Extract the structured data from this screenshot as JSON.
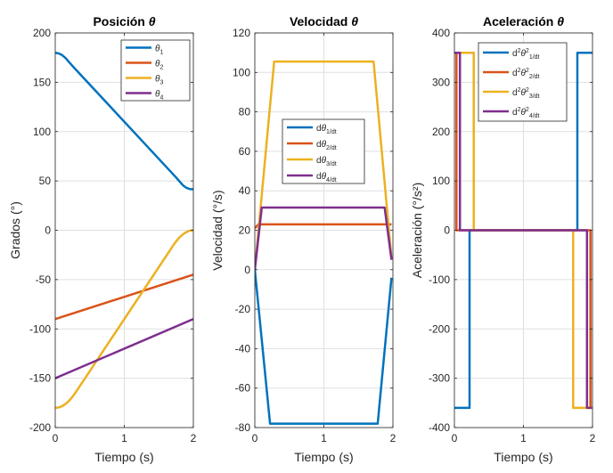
{
  "chart_data": [
    {
      "type": "line",
      "title": "Posición  θ",
      "xlabel": "Tiempo (s)",
      "ylabel": "Grados (°)",
      "xlim": [
        0,
        2
      ],
      "ylim": [
        -200,
        200
      ],
      "xticks": [
        0,
        1,
        2
      ],
      "yticks": [
        -200,
        -150,
        -100,
        -50,
        0,
        50,
        100,
        150,
        200
      ],
      "grid": true,
      "legend_position": "top-right",
      "series": [
        {
          "name": "θ1",
          "color": "#0072BD",
          "x": [
            0,
            0.05,
            0.1,
            0.15,
            0.2,
            0.25,
            1.75,
            1.8,
            1.85,
            1.9,
            1.95,
            2.0
          ],
          "y": [
            180,
            179.2,
            177.5,
            174.5,
            170.5,
            166.5,
            53.5,
            49.5,
            45.5,
            43,
            41.8,
            41.5
          ]
        },
        {
          "name": "θ2",
          "color": "#D95319",
          "x": [
            0,
            2
          ],
          "y": [
            -90,
            -45
          ]
        },
        {
          "name": "θ3",
          "color": "#EDB120",
          "x": [
            0,
            0.05,
            0.1,
            0.15,
            0.2,
            0.25,
            0.3,
            1.7,
            1.75,
            1.8,
            1.85,
            1.9,
            1.95,
            2.0
          ],
          "y": [
            -180,
            -179.6,
            -178.2,
            -176,
            -172.8,
            -168.7,
            -163.8,
            -16.2,
            -11.3,
            -7.2,
            -4,
            -1.8,
            -0.4,
            0
          ]
        },
        {
          "name": "θ4",
          "color": "#7E2F8E",
          "x": [
            0,
            2
          ],
          "y": [
            -150,
            -90
          ]
        }
      ]
    },
    {
      "type": "line",
      "title": "Velocidad  θ",
      "xlabel": "Tiempo (s)",
      "ylabel": "Velocidad (°/s)",
      "xlim": [
        0,
        2
      ],
      "ylim": [
        -80,
        120
      ],
      "xticks": [
        0,
        1,
        2
      ],
      "yticks": [
        -80,
        -60,
        -40,
        -20,
        0,
        20,
        40,
        60,
        80,
        100,
        120
      ],
      "grid": true,
      "legend_position": "center",
      "series": [
        {
          "name": "dθ1/dt",
          "color": "#0072BD",
          "x": [
            0,
            0.22,
            1.78,
            1.98
          ],
          "y": [
            0,
            -78,
            -78,
            -4
          ]
        },
        {
          "name": "dθ2/dt",
          "color": "#D95319",
          "x": [
            0,
            0.05,
            1.98
          ],
          "y": [
            21,
            23,
            23
          ]
        },
        {
          "name": "dθ3/dt",
          "color": "#EDB120",
          "x": [
            0,
            0.28,
            1.72,
            1.98
          ],
          "y": [
            0,
            105.5,
            105.5,
            6
          ]
        },
        {
          "name": "dθ4/dt",
          "color": "#7E2F8E",
          "x": [
            0,
            0.1,
            1.88,
            1.98
          ],
          "y": [
            0,
            31.5,
            31.5,
            5
          ]
        }
      ]
    },
    {
      "type": "line",
      "title": "Aceleración  θ",
      "xlabel": "Tiempo (s)",
      "ylabel": "Aceleración  (°/s²)",
      "xlim": [
        0,
        2
      ],
      "ylim": [
        -400,
        400
      ],
      "xticks": [
        0,
        1,
        2
      ],
      "yticks": [
        -400,
        -300,
        -200,
        -100,
        0,
        100,
        200,
        300,
        400
      ],
      "grid": true,
      "legend_position": "top-right",
      "series": [
        {
          "name": "d²θ²1/dt",
          "color": "#0072BD",
          "x": [
            0,
            0.22,
            0.22,
            1.78,
            1.78,
            2.0
          ],
          "y": [
            -360,
            -360,
            0,
            0,
            360,
            360
          ]
        },
        {
          "name": "d²θ²2/dt",
          "color": "#D95319",
          "x": [
            0,
            0.03,
            0.03,
            1.97,
            1.97,
            2.0
          ],
          "y": [
            360,
            360,
            0,
            0,
            -360,
            -360
          ]
        },
        {
          "name": "d²θ²3/dt",
          "color": "#EDB120",
          "x": [
            0,
            0.28,
            0.28,
            1.72,
            1.72,
            1.98
          ],
          "y": [
            360,
            360,
            0,
            0,
            -360,
            -360
          ]
        },
        {
          "name": "d²θ²4/dt",
          "color": "#7E2F8E",
          "x": [
            0,
            0.08,
            0.08,
            1.92,
            1.92,
            1.98
          ],
          "y": [
            360,
            360,
            0,
            0,
            -360,
            -360
          ]
        }
      ]
    }
  ]
}
